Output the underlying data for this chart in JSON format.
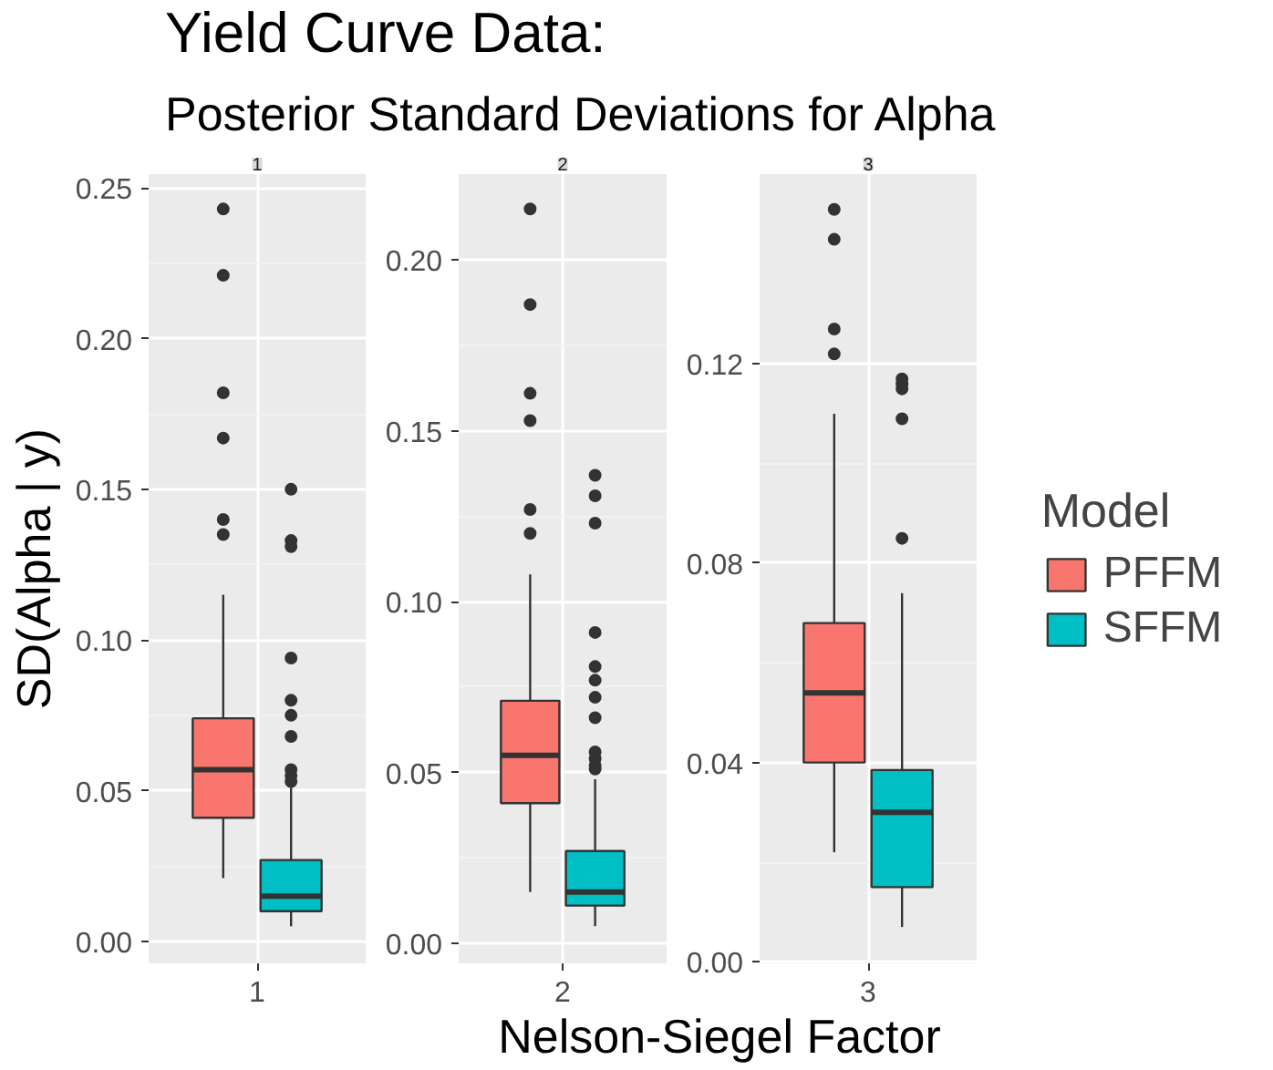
{
  "chart_data": [
    {
      "type": "other",
      "title": "Yield Curve Data:",
      "subtitle": "Posterior Standard Deviations for Alpha"
    },
    {
      "type": "box",
      "title": "1",
      "ylabel": "SD(Alpha | y)",
      "categories": [
        "1"
      ],
      "ylim": [
        -0.0073,
        0.2546
      ],
      "yticks": [
        {
          "value": 0,
          "label": "0.00"
        },
        {
          "value": 0.05,
          "label": "0.05"
        },
        {
          "value": 0.1,
          "label": "0.10"
        },
        {
          "value": 0.15,
          "label": "0.15"
        },
        {
          "value": 0.2,
          "label": "0.20"
        },
        {
          "value": 0.25,
          "label": "0.25"
        }
      ],
      "grid": true,
      "series": [
        {
          "color": "#f8766d",
          "boxes": [
            {
              "low": 0.021,
              "q1": 0.041,
              "median": 0.057,
              "q3": 0.074,
              "high": 0.115,
              "outliers": [
                0.243,
                0.221,
                0.182,
                0.167,
                0.14,
                0.135
              ]
            }
          ]
        },
        {
          "color": "#00bfc4",
          "boxes": [
            {
              "low": 0.005,
              "q1": 0.01,
              "median": 0.015,
              "q3": 0.027,
              "high": 0.051,
              "outliers": [
                0.15,
                0.133,
                0.131,
                0.094,
                0.08,
                0.075,
                0.068,
                0.057,
                0.055,
                0.053
              ]
            }
          ]
        }
      ]
    },
    {
      "type": "box",
      "title": "2",
      "xlabel": "Nelson-Siegel Factor",
      "categories": [
        "2"
      ],
      "ylim": [
        -0.0059,
        0.2252
      ],
      "yticks": [
        {
          "value": 0,
          "label": "0.00"
        },
        {
          "value": 0.05,
          "label": "0.05"
        },
        {
          "value": 0.1,
          "label": "0.10"
        },
        {
          "value": 0.15,
          "label": "0.15"
        },
        {
          "value": 0.2,
          "label": "0.20"
        }
      ],
      "grid": true,
      "series": [
        {
          "color": "#f8766d",
          "boxes": [
            {
              "low": 0.015,
              "q1": 0.041,
              "median": 0.055,
              "q3": 0.071,
              "high": 0.108,
              "outliers": [
                0.215,
                0.187,
                0.161,
                0.153,
                0.127,
                0.12
              ]
            }
          ]
        },
        {
          "color": "#00bfc4",
          "boxes": [
            {
              "low": 0.005,
              "q1": 0.011,
              "median": 0.015,
              "q3": 0.027,
              "high": 0.048,
              "outliers": [
                0.137,
                0.131,
                0.123,
                0.091,
                0.081,
                0.077,
                0.072,
                0.066,
                0.056,
                0.054,
                0.052,
                0.051
              ]
            }
          ]
        }
      ]
    },
    {
      "type": "box",
      "title": "3",
      "legend_title": "Model",
      "legend": "right",
      "categories": [
        "3"
      ],
      "ylim": [
        -0.0003,
        0.1581
      ],
      "yticks": [
        {
          "value": 0,
          "label": "0.00"
        },
        {
          "value": 0.04,
          "label": "0.04"
        },
        {
          "value": 0.08,
          "label": "0.08"
        },
        {
          "value": 0.12,
          "label": "0.12"
        }
      ],
      "grid": true,
      "series": [
        {
          "name": "PFFM",
          "color": "#f8766d",
          "boxes": [
            {
              "low": 0.022,
              "q1": 0.04,
              "median": 0.054,
              "q3": 0.068,
              "high": 0.11,
              "outliers": [
                0.151,
                0.145,
                0.127,
                0.122
              ]
            }
          ]
        },
        {
          "name": "SFFM",
          "color": "#00bfc4",
          "boxes": [
            {
              "low": 0.007,
              "q1": 0.015,
              "median": 0.03,
              "q3": 0.0385,
              "high": 0.074,
              "outliers": [
                0.117,
                0.116,
                0.115,
                0.109,
                0.085
              ]
            }
          ]
        }
      ]
    }
  ]
}
